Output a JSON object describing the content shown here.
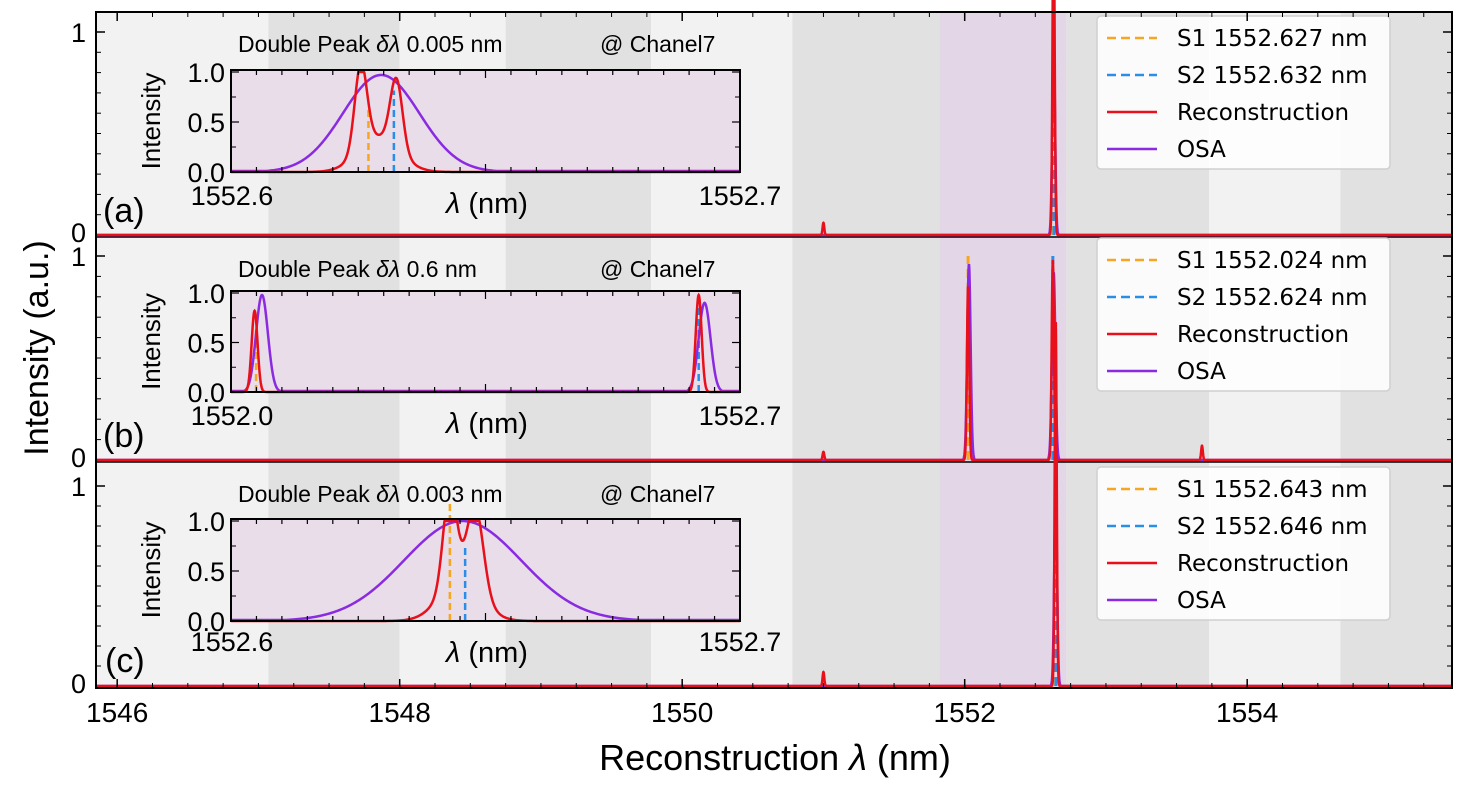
{
  "colors": {
    "s1": "#f5a623",
    "s2": "#2a8ee8",
    "reconstruction": "#e8101a",
    "osa": "#8a2be2",
    "highlight": "#e3d6e6",
    "band_light": "#f2f2f2",
    "band_dark": "#e1e1e1",
    "inset_bg": "#e8dde9"
  },
  "figure": {
    "ylabel": "Intensity (a.u.)",
    "xlabel": "Reconstruction λ (nm)",
    "xlabel_prefix": "Reconstruction ",
    "xlabel_symbol": "λ",
    "xlabel_suffix": " (nm)",
    "xlim": [
      1545.85,
      1555.45
    ],
    "xticks": [
      "1546",
      "1548",
      "1550",
      "1552",
      "1554"
    ],
    "channel_bands": [
      {
        "from": 1545.85,
        "to": 1547.07,
        "shade": "light"
      },
      {
        "from": 1547.07,
        "to": 1548.0,
        "shade": "dark"
      },
      {
        "from": 1548.0,
        "to": 1548.75,
        "shade": "light"
      },
      {
        "from": 1548.75,
        "to": 1549.78,
        "shade": "dark"
      },
      {
        "from": 1549.78,
        "to": 1550.78,
        "shade": "light"
      },
      {
        "from": 1550.78,
        "to": 1551.82,
        "shade": "dark"
      },
      {
        "from": 1551.82,
        "to": 1552.72,
        "shade": "highlight"
      },
      {
        "from": 1552.72,
        "to": 1553.73,
        "shade": "dark"
      },
      {
        "from": 1553.73,
        "to": 1554.66,
        "shade": "light"
      },
      {
        "from": 1554.66,
        "to": 1555.45,
        "shade": "dark"
      }
    ]
  },
  "chart_data": [
    {
      "type": "line",
      "panel": "(a)",
      "ylim": [
        0,
        1.1
      ],
      "yticks": [
        "0",
        "1"
      ],
      "legend": [
        "S1 1552.627 nm",
        "S2 1552.632 nm",
        "Reconstruction",
        "OSA"
      ],
      "s1": 1552.627,
      "s2": 1552.632,
      "reconstruction_peaks": [
        [
          1551.0,
          0.06,
          0.006
        ],
        [
          1552.627,
          0.95,
          0.007
        ],
        [
          1552.632,
          0.8,
          0.007
        ]
      ],
      "osa_peaks": [
        [
          1552.63,
          0.92,
          0.01
        ]
      ],
      "inset": {
        "title": "Double Peak δλ 0.005 nm",
        "title_prefix": "Double Peak ",
        "title_symbol": "δλ",
        "title_suffix": " 0.005 nm",
        "channel": "@ Chanel7",
        "ylabel": "Intensity",
        "xlabel": "λ (nm)",
        "xlabel_symbol": "λ",
        "xlabel_suffix": " (nm)",
        "xlim": [
          1552.6,
          1552.7
        ],
        "ylim": [
          0,
          1.0
        ],
        "yticks": [
          "0.0",
          "0.5",
          "1.0"
        ],
        "xticks": [
          "1552.6",
          "1552.7"
        ],
        "s1": 1552.627,
        "s2": 1552.632,
        "reconstruction_peaks": [
          [
            1552.6255,
            0.85,
            0.0012
          ],
          [
            1552.6325,
            0.7,
            0.0012
          ],
          [
            1552.629,
            0.35,
            0.004
          ]
        ],
        "osa_peaks": [
          [
            1552.6295,
            0.97,
            0.0075
          ]
        ]
      }
    },
    {
      "type": "line",
      "panel": "(b)",
      "ylim": [
        0,
        1.1
      ],
      "yticks": [
        "0",
        "1"
      ],
      "legend": [
        "S1 1552.024 nm",
        "S2 1552.624 nm",
        "Reconstruction",
        "OSA"
      ],
      "s1": 1552.024,
      "s2": 1552.624,
      "reconstruction_peaks": [
        [
          1551.0,
          0.04,
          0.006
        ],
        [
          1552.024,
          0.85,
          0.008
        ],
        [
          1552.624,
          0.98,
          0.008
        ],
        [
          1553.68,
          0.07,
          0.006
        ]
      ],
      "osa_peaks": [
        [
          1552.03,
          0.96,
          0.012
        ],
        [
          1552.63,
          0.92,
          0.012
        ]
      ],
      "inset": {
        "title": "Double Peak δλ 0.6 nm",
        "title_prefix": "Double Peak ",
        "title_symbol": "δλ",
        "title_suffix": " 0.6 nm",
        "channel": "@ Chanel7",
        "ylabel": "Intensity",
        "xlabel": "λ (nm)",
        "xlabel_symbol": "λ",
        "xlabel_suffix": " (nm)",
        "xlim": [
          1551.99,
          1552.68
        ],
        "ylim": [
          0,
          1.0
        ],
        "yticks": [
          "0.0",
          "0.5",
          "1.0"
        ],
        "xticks": [
          "1552.0",
          "1552.7"
        ],
        "s1": 1552.024,
        "s2": 1552.624,
        "reconstruction_peaks": [
          [
            1552.022,
            0.82,
            0.004
          ],
          [
            1552.624,
            0.98,
            0.004
          ]
        ],
        "osa_peaks": [
          [
            1552.032,
            0.98,
            0.008
          ],
          [
            1552.632,
            0.9,
            0.008
          ]
        ]
      }
    },
    {
      "type": "line",
      "panel": "(c)",
      "ylim": [
        0,
        1.1
      ],
      "yticks": [
        "0",
        "1"
      ],
      "legend": [
        "S1 1552.643 nm",
        "S2 1552.646 nm",
        "Reconstruction",
        "OSA"
      ],
      "s1": 1552.643,
      "s2": 1552.646,
      "reconstruction_peaks": [
        [
          1551.0,
          0.07,
          0.006
        ],
        [
          1552.643,
          0.96,
          0.007
        ],
        [
          1552.646,
          0.9,
          0.007
        ]
      ],
      "osa_peaks": [
        [
          1552.644,
          0.95,
          0.01
        ]
      ],
      "inset": {
        "title": "Double Peak δλ 0.003 nm",
        "title_prefix": "Double Peak ",
        "title_symbol": "δλ",
        "title_suffix": " 0.003 nm",
        "channel": "@ Chanel7",
        "ylabel": "Intensity",
        "xlabel": "λ (nm)",
        "xlabel_symbol": "λ",
        "xlabel_suffix": " (nm)",
        "xlim": [
          1552.6,
          1552.7
        ],
        "ylim": [
          0,
          1.0
        ],
        "yticks": [
          "0.0",
          "0.5",
          "1.0"
        ],
        "xticks": [
          "1552.6",
          "1552.7"
        ],
        "s1": 1552.643,
        "s2": 1552.646,
        "reconstruction_peaks": [
          [
            1552.643,
            0.98,
            0.0013
          ],
          [
            1552.648,
            0.85,
            0.0016
          ],
          [
            1552.645,
            0.4,
            0.004
          ]
        ],
        "osa_peaks": [
          [
            1552.6455,
            1.0,
            0.0115
          ]
        ]
      }
    }
  ]
}
